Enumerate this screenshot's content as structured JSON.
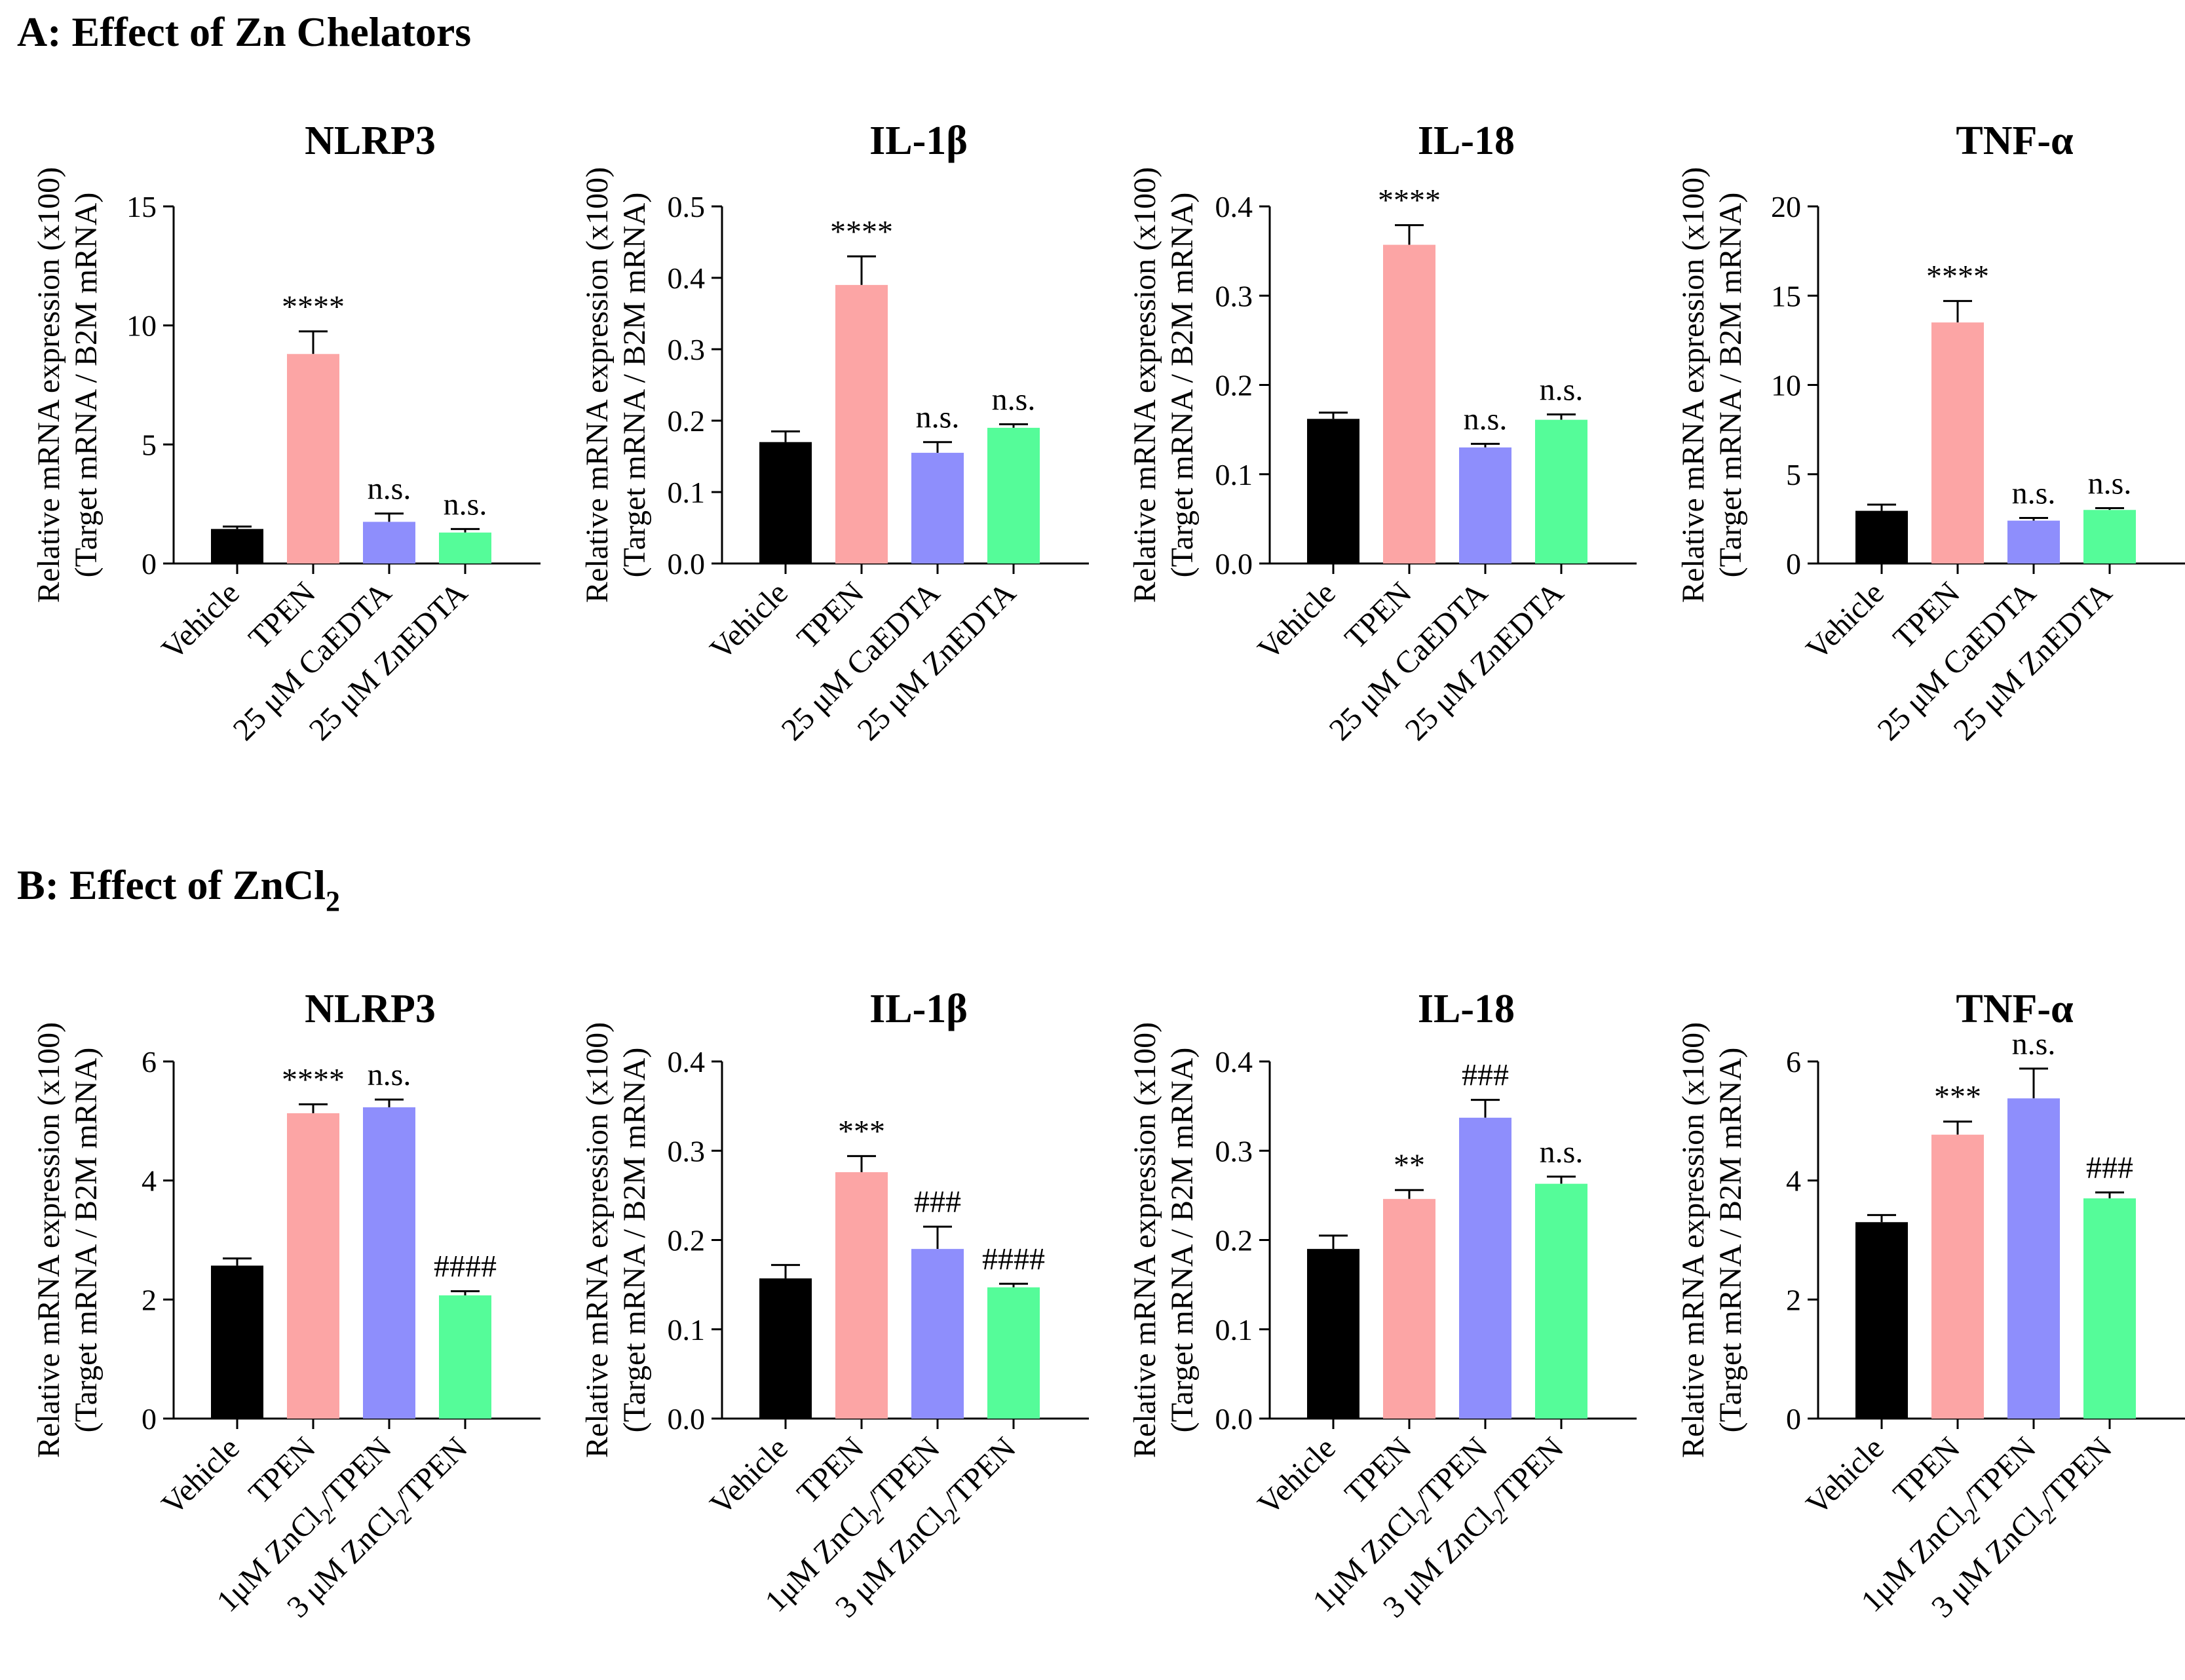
{
  "figure": {
    "colors": {
      "Vehicle": "#000000",
      "TPEN": "#fca5a5",
      "group3": "#8e8efc",
      "group4": "#55fc99"
    },
    "panels": [
      {
        "heading": "A: Effect of Zn Chelators",
        "heading_subscript": "",
        "categories": [
          {
            "text": "Vehicle"
          },
          {
            "text": "TPEN"
          },
          {
            "text": "25 μM CaEDTA"
          },
          {
            "text": "25 μM ZnEDTA"
          }
        ]
      },
      {
        "heading": "B: Effect of ZnCl",
        "heading_subscript": "2",
        "categories": [
          {
            "text": "Vehicle"
          },
          {
            "text": "TPEN"
          },
          {
            "text": "1μM ZnCl",
            "sub": "2",
            "after": "/TPEN"
          },
          {
            "text": "3 μM ZnCl",
            "sub": "2",
            "after": "/TPEN"
          }
        ]
      }
    ],
    "ylabel_line1": "Relative mRNA expression (x100)",
    "ylabel_line2": "(Target mRNA / B2M mRNA)"
  },
  "chart_data": [
    {
      "type": "bar",
      "panel": "A",
      "title": "NLRP3",
      "ylim": [
        0,
        15
      ],
      "yticks": [
        "0",
        "5",
        "10",
        "15"
      ],
      "categories": [
        "Vehicle",
        "TPEN",
        "25 μM CaEDTA",
        "25 μM ZnEDTA"
      ],
      "values": [
        1.45,
        8.8,
        1.75,
        1.3
      ],
      "errors": [
        0.1,
        0.95,
        0.35,
        0.15
      ],
      "annotations": [
        "",
        "****",
        "n.s.",
        "n.s."
      ]
    },
    {
      "type": "bar",
      "panel": "A",
      "title": "IL-1β",
      "ylim": [
        0,
        0.5
      ],
      "yticks": [
        "0.0",
        "0.1",
        "0.2",
        "0.3",
        "0.4",
        "0.5"
      ],
      "categories": [
        "Vehicle",
        "TPEN",
        "25 μM CaEDTA",
        "25 μM ZnEDTA"
      ],
      "values": [
        0.17,
        0.39,
        0.155,
        0.19
      ],
      "errors": [
        0.015,
        0.04,
        0.015,
        0.005
      ],
      "annotations": [
        "",
        "****",
        "n.s.",
        "n.s."
      ]
    },
    {
      "type": "bar",
      "panel": "A",
      "title": "IL-18",
      "ylim": [
        0,
        0.4
      ],
      "yticks": [
        "0.0",
        "0.1",
        "0.2",
        "0.3",
        "0.4"
      ],
      "categories": [
        "Vehicle",
        "TPEN",
        "25 μM CaEDTA",
        "25 μM ZnEDTA"
      ],
      "values": [
        0.162,
        0.357,
        0.13,
        0.161
      ],
      "errors": [
        0.007,
        0.022,
        0.004,
        0.006
      ],
      "annotations": [
        "",
        "****",
        "n.s.",
        "n.s."
      ]
    },
    {
      "type": "bar",
      "panel": "A",
      "title": "TNF-α",
      "ylim": [
        0,
        20
      ],
      "yticks": [
        "0",
        "5",
        "10",
        "15",
        "20"
      ],
      "categories": [
        "Vehicle",
        "TPEN",
        "25 μM CaEDTA",
        "25 μM ZnEDTA"
      ],
      "values": [
        2.95,
        13.5,
        2.4,
        3.0
      ],
      "errors": [
        0.35,
        1.2,
        0.15,
        0.1
      ],
      "annotations": [
        "",
        "****",
        "n.s.",
        "n.s."
      ]
    },
    {
      "type": "bar",
      "panel": "B",
      "title": "NLRP3",
      "ylim": [
        0,
        6
      ],
      "yticks": [
        "0",
        "2",
        "4",
        "6"
      ],
      "categories": [
        "Vehicle",
        "TPEN",
        "1μM ZnCl2/TPEN",
        "3 μM ZnCl2/TPEN"
      ],
      "values": [
        2.57,
        5.13,
        5.23,
        2.07
      ],
      "errors": [
        0.12,
        0.15,
        0.13,
        0.07
      ],
      "annotations": [
        "",
        "****",
        "n.s.",
        "####"
      ]
    },
    {
      "type": "bar",
      "panel": "B",
      "title": "IL-1β",
      "ylim": [
        0,
        0.4
      ],
      "yticks": [
        "0.0",
        "0.1",
        "0.2",
        "0.3",
        "0.4"
      ],
      "categories": [
        "Vehicle",
        "TPEN",
        "1μM ZnCl2/TPEN",
        "3 μM ZnCl2/TPEN"
      ],
      "values": [
        0.157,
        0.276,
        0.19,
        0.147
      ],
      "errors": [
        0.015,
        0.018,
        0.025,
        0.004
      ],
      "annotations": [
        "",
        "***",
        "###",
        "####"
      ]
    },
    {
      "type": "bar",
      "panel": "B",
      "title": "IL-18",
      "ylim": [
        0,
        0.4
      ],
      "yticks": [
        "0.0",
        "0.1",
        "0.2",
        "0.3",
        "0.4"
      ],
      "categories": [
        "Vehicle",
        "TPEN",
        "1μM ZnCl2/TPEN",
        "3 μM ZnCl2/TPEN"
      ],
      "values": [
        0.19,
        0.246,
        0.337,
        0.263
      ],
      "errors": [
        0.015,
        0.01,
        0.02,
        0.008
      ],
      "annotations": [
        "",
        "**",
        "###",
        "n.s."
      ]
    },
    {
      "type": "bar",
      "panel": "B",
      "title": "TNF-α",
      "ylim": [
        0,
        6
      ],
      "yticks": [
        "0",
        "2",
        "4",
        "6"
      ],
      "categories": [
        "Vehicle",
        "TPEN",
        "1μM ZnCl2/TPEN",
        "3 μM ZnCl2/TPEN"
      ],
      "values": [
        3.3,
        4.77,
        5.38,
        3.7
      ],
      "errors": [
        0.12,
        0.22,
        0.5,
        0.1
      ],
      "annotations": [
        "",
        "***",
        "n.s.",
        "###"
      ]
    }
  ]
}
